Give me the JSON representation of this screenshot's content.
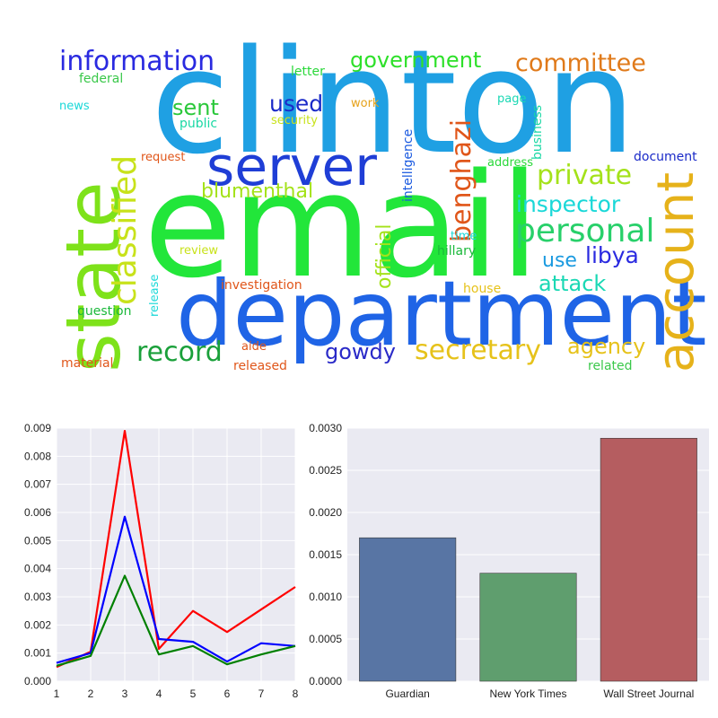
{
  "wordcloud": {
    "words": [
      {
        "id": "clinton",
        "text": "clinton",
        "color": "#1fa0e3"
      },
      {
        "id": "email",
        "text": "email",
        "color": "#22e63a"
      },
      {
        "id": "state",
        "text": "state",
        "color": "#7ee21a"
      },
      {
        "id": "department",
        "text": "department",
        "color": "#1f64e6"
      },
      {
        "id": "server",
        "text": "server",
        "color": "#1f3ed6"
      },
      {
        "id": "account",
        "text": "account",
        "color": "#e6b21a"
      },
      {
        "id": "classified",
        "text": "classified",
        "color": "#c8e21a"
      },
      {
        "id": "information",
        "text": "information",
        "color": "#2a2ae0"
      },
      {
        "id": "government",
        "text": "government",
        "color": "#2ee02a"
      },
      {
        "id": "committee",
        "text": "committee",
        "color": "#e07a1a"
      },
      {
        "id": "personal",
        "text": "personal",
        "color": "#28d06a"
      },
      {
        "id": "private",
        "text": "private",
        "color": "#a4e21a"
      },
      {
        "id": "inspector",
        "text": "inspector",
        "color": "#1ad8d8"
      },
      {
        "id": "benghazi",
        "text": "benghazi",
        "color": "#e0561a"
      },
      {
        "id": "secretary",
        "text": "secretary",
        "color": "#e6c21a"
      },
      {
        "id": "record",
        "text": "record",
        "color": "#1aa03a"
      },
      {
        "id": "attack",
        "text": "attack",
        "color": "#1ad8b4"
      },
      {
        "id": "libya",
        "text": "libya",
        "color": "#2a2ae0"
      },
      {
        "id": "use",
        "text": "use",
        "color": "#1a9ae0"
      },
      {
        "id": "agency",
        "text": "agency",
        "color": "#e6c21a"
      },
      {
        "id": "blumenthal",
        "text": "blumenthal",
        "color": "#a4e21a"
      },
      {
        "id": "used",
        "text": "used",
        "color": "#1a2ac8"
      },
      {
        "id": "sent",
        "text": "sent",
        "color": "#2ac83a"
      },
      {
        "id": "gowdy",
        "text": "gowdy",
        "color": "#2a2ac8"
      },
      {
        "id": "official",
        "text": "official",
        "color": "#a4e21a"
      },
      {
        "id": "intelligence",
        "text": "intelligence",
        "color": "#1a5ae0"
      },
      {
        "id": "business",
        "text": "business",
        "color": "#1ad8a4"
      },
      {
        "id": "investigation",
        "text": "investigation",
        "color": "#e0561a"
      },
      {
        "id": "document",
        "text": "document",
        "color": "#1a2ac8"
      },
      {
        "id": "letter",
        "text": "letter",
        "color": "#2ad83a"
      },
      {
        "id": "federal",
        "text": "federal",
        "color": "#3ac84a"
      },
      {
        "id": "news",
        "text": "news",
        "color": "#1ad8d8"
      },
      {
        "id": "public",
        "text": "public",
        "color": "#1ad8a4"
      },
      {
        "id": "security",
        "text": "security",
        "color": "#c8e21a"
      },
      {
        "id": "work",
        "text": "work",
        "color": "#e6a21a"
      },
      {
        "id": "page",
        "text": "page",
        "color": "#1ad8b4"
      },
      {
        "id": "request",
        "text": "request",
        "color": "#e0561a"
      },
      {
        "id": "address",
        "text": "address",
        "color": "#2ad83a"
      },
      {
        "id": "time",
        "text": "time",
        "color": "#1ad8d8"
      },
      {
        "id": "hillary",
        "text": "hillary",
        "color": "#1ab83a"
      },
      {
        "id": "review",
        "text": "review",
        "color": "#c8e21a"
      },
      {
        "id": "release",
        "text": "release",
        "color": "#1ad8d8"
      },
      {
        "id": "house",
        "text": "house",
        "color": "#e6c21a"
      },
      {
        "id": "question",
        "text": "question",
        "color": "#1ab83a"
      },
      {
        "id": "aide",
        "text": "aide",
        "color": "#e0561a"
      },
      {
        "id": "material",
        "text": "material",
        "color": "#e0561a"
      },
      {
        "id": "released",
        "text": "released",
        "color": "#e0561a"
      },
      {
        "id": "related",
        "text": "related",
        "color": "#3ac84a"
      }
    ]
  },
  "chart_data": [
    {
      "type": "line",
      "x": [
        1,
        2,
        3,
        4,
        5,
        6,
        7,
        8
      ],
      "series": [
        {
          "color": "#ff0000",
          "values": [
            0.0005,
            0.00105,
            0.0089,
            0.00115,
            0.0025,
            0.00175,
            0.00255,
            0.00335
          ]
        },
        {
          "color": "#0000ff",
          "values": [
            0.00065,
            0.001,
            0.00585,
            0.0015,
            0.0014,
            0.0007,
            0.00135,
            0.00125
          ]
        },
        {
          "color": "#008000",
          "values": [
            0.00055,
            0.0009,
            0.00375,
            0.00095,
            0.00125,
            0.0006,
            0.00095,
            0.00125
          ]
        }
      ],
      "xlim": [
        1,
        8
      ],
      "ylim": [
        0,
        0.009
      ],
      "xticks": [
        "1",
        "2",
        "3",
        "4",
        "5",
        "6",
        "7",
        "8"
      ],
      "yticks": [
        "0.000",
        "0.001",
        "0.002",
        "0.003",
        "0.004",
        "0.005",
        "0.006",
        "0.007",
        "0.008",
        "0.009"
      ],
      "grid": true
    },
    {
      "type": "bar",
      "categories": [
        "Guardian",
        "New York Times",
        "Wall Street Journal"
      ],
      "values": [
        0.0017,
        0.00128,
        0.00288
      ],
      "colors": [
        "#5875a4",
        "#5f9e6e",
        "#b55d60"
      ],
      "ylim": [
        0,
        0.003
      ],
      "yticks": [
        "0.0000",
        "0.0005",
        "0.0010",
        "0.0015",
        "0.0020",
        "0.0025",
        "0.0030"
      ],
      "grid": true
    }
  ]
}
